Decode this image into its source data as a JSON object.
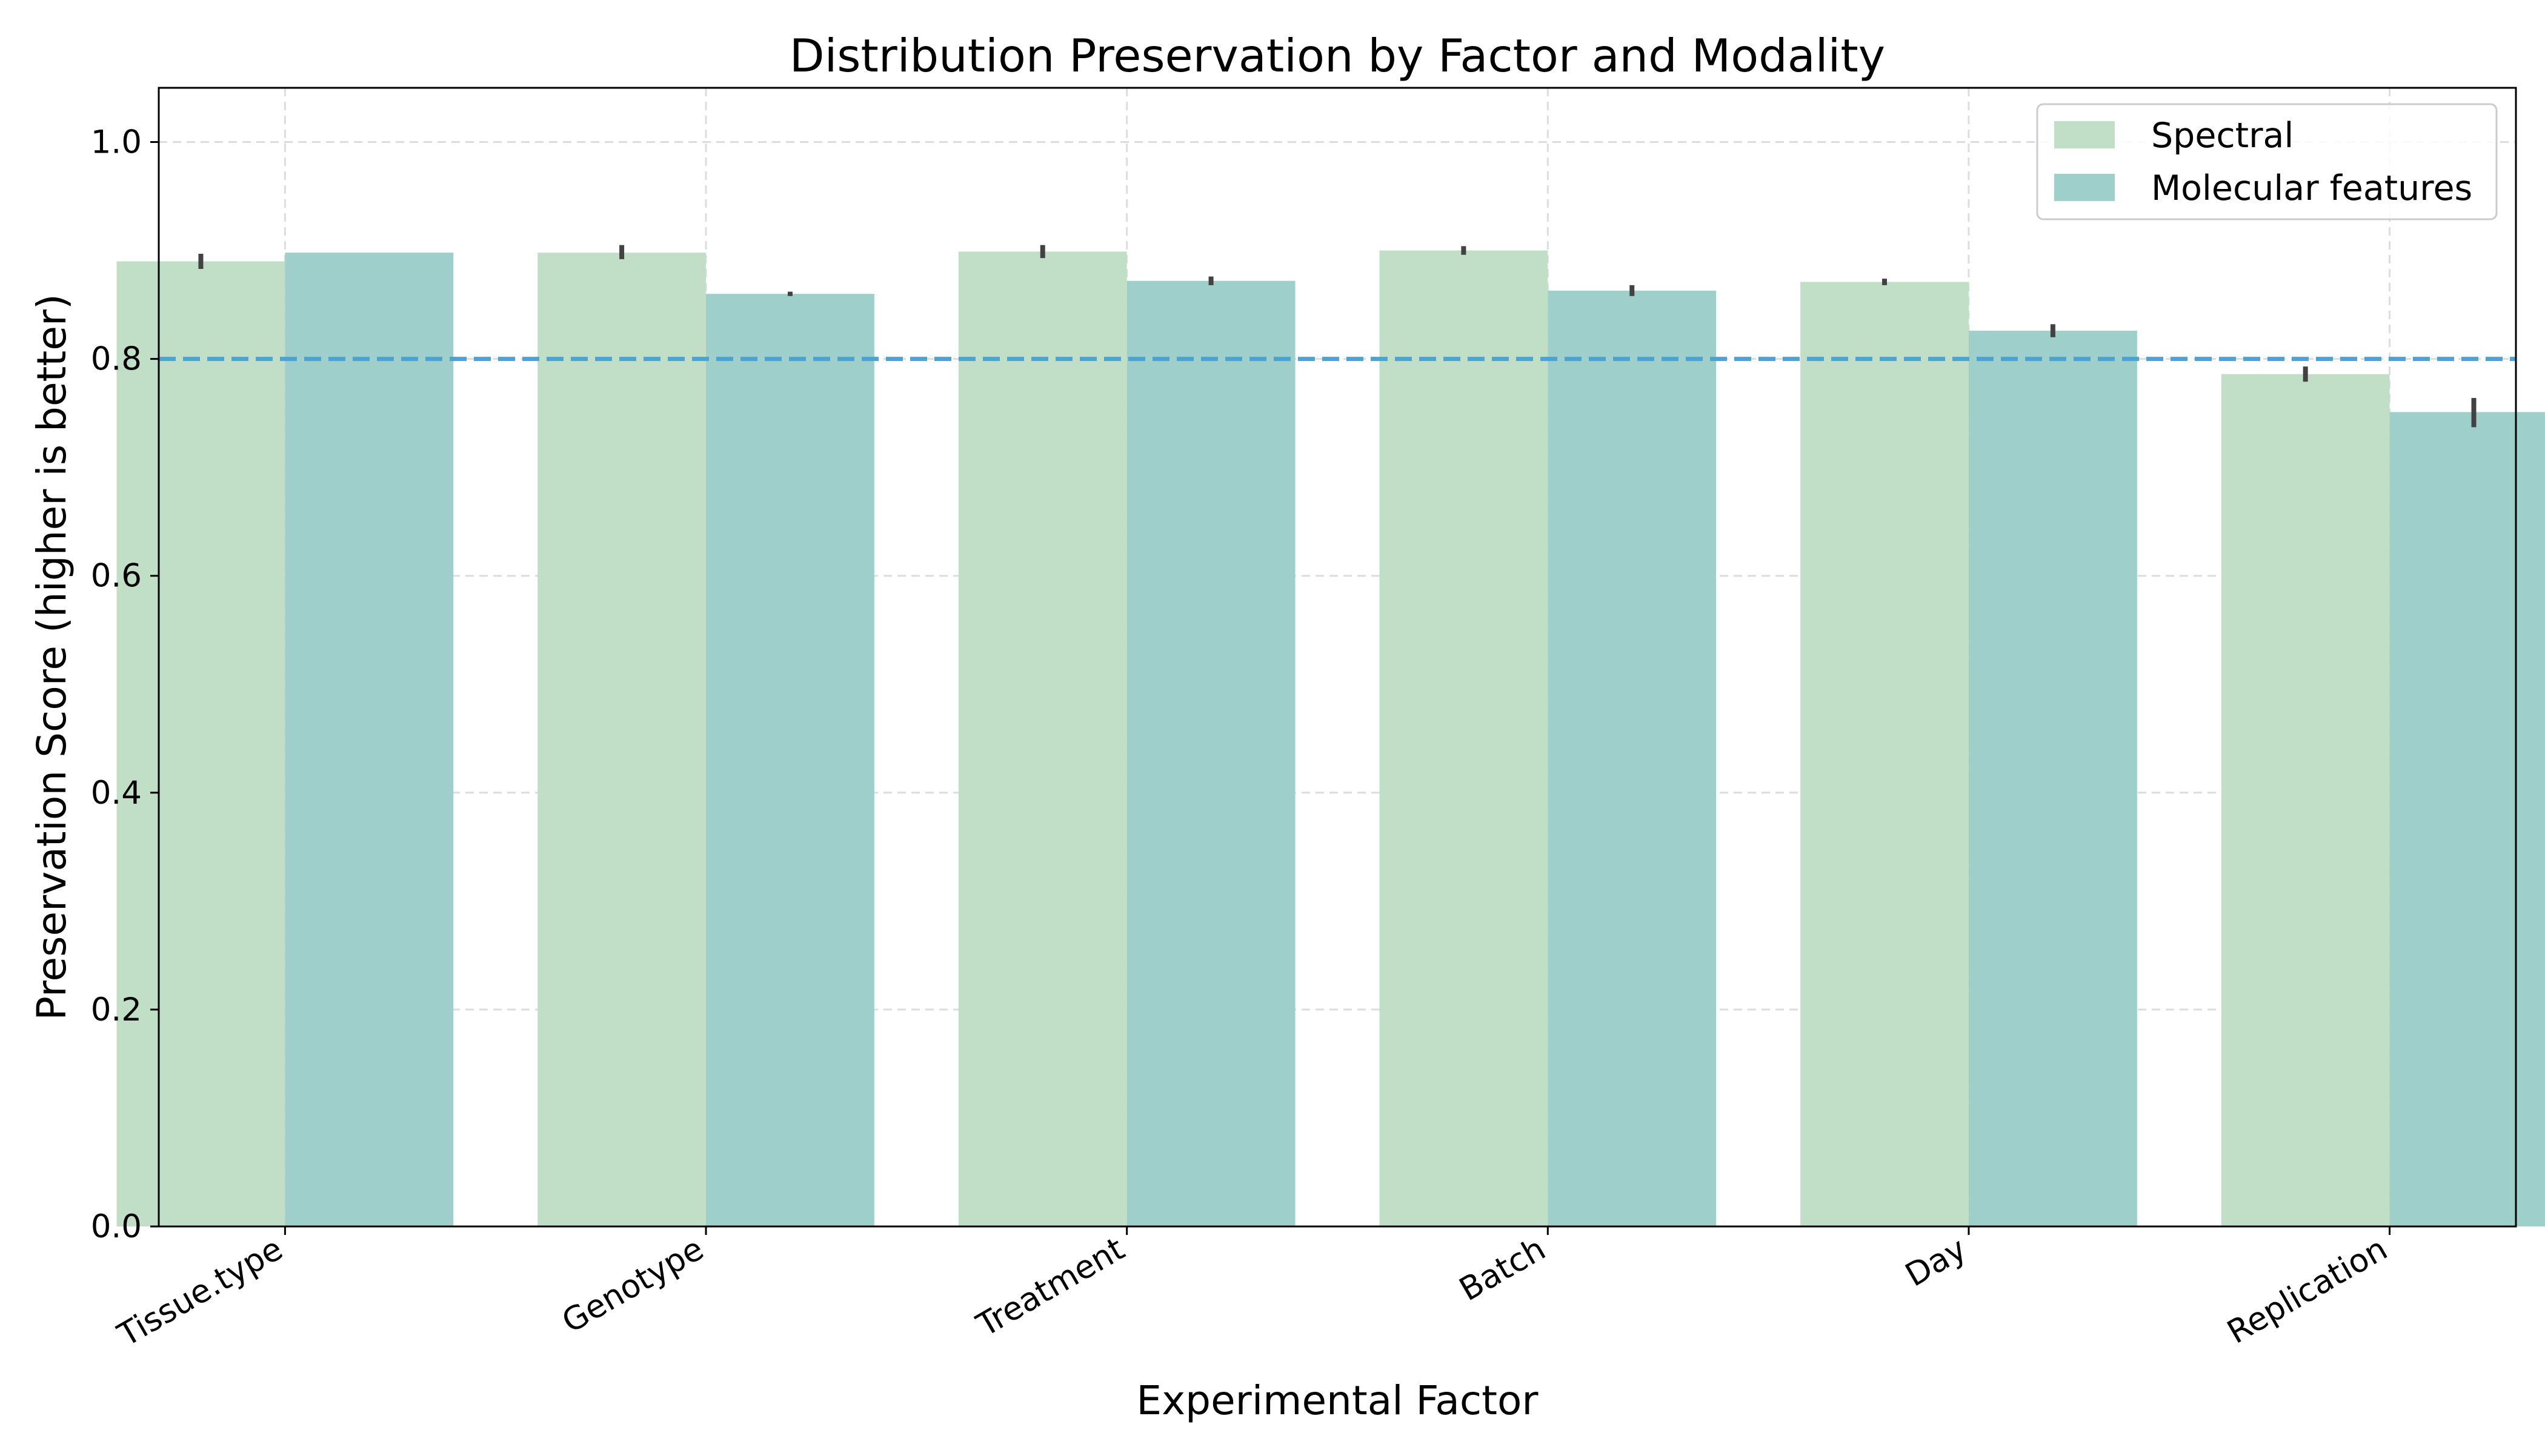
{
  "chart_data": {
    "type": "bar",
    "title": "Distribution Preservation by Factor and Modality",
    "xlabel": "Experimental Factor",
    "ylabel": "Preservation Score (higher is better)",
    "categories": [
      "Tissue.type",
      "Genotype",
      "Treatment",
      "Batch",
      "Day",
      "Replication"
    ],
    "series": [
      {
        "name": "Spectral",
        "color": "#c1dfc6",
        "values": [
          0.89,
          0.898,
          0.899,
          0.9,
          0.871,
          0.786
        ],
        "error_low": [
          0.883,
          0.892,
          0.893,
          0.896,
          0.868,
          0.779
        ],
        "error_high": [
          0.897,
          0.905,
          0.905,
          0.904,
          0.874,
          0.793
        ]
      },
      {
        "name": "Molecular features",
        "color": "#9ecfca",
        "values": [
          0.898,
          0.86,
          0.872,
          0.863,
          0.826,
          0.751
        ],
        "error_low": [
          0.898,
          0.858,
          0.868,
          0.858,
          0.82,
          0.737
        ],
        "error_high": [
          0.898,
          0.862,
          0.876,
          0.868,
          0.832,
          0.764
        ]
      }
    ],
    "yticks": [
      "0.0",
      "0.2",
      "0.4",
      "0.6",
      "0.8",
      "1.0"
    ],
    "ylim": [
      0,
      1.05
    ],
    "reference_line": {
      "value": 0.8,
      "style": "dashed",
      "color": "#4ba3d3"
    },
    "grid": true,
    "legend_position": "top-right"
  }
}
